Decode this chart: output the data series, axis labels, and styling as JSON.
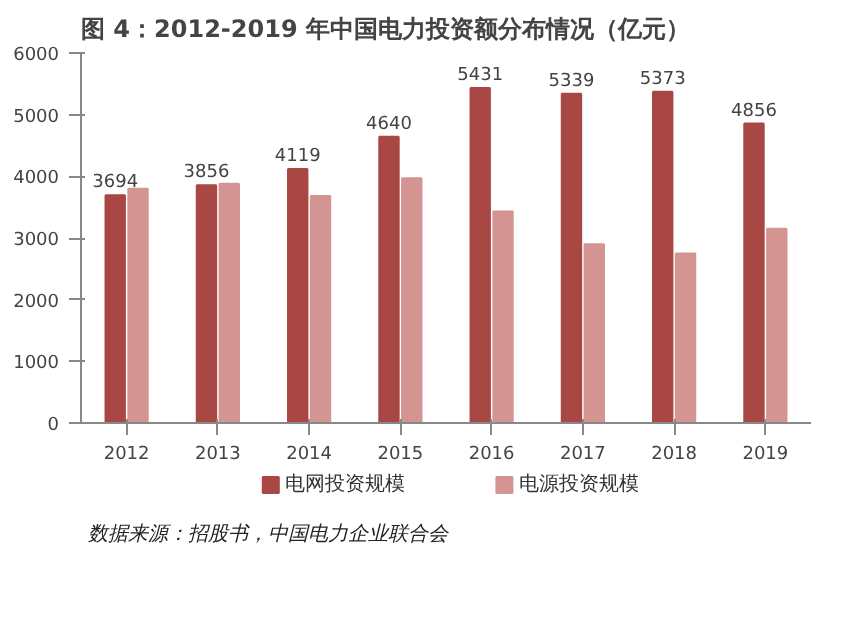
{
  "chart_data": {
    "type": "bar",
    "title": "图 4：2012-2019 年中国电力投资额分布情况（亿元）",
    "categories": [
      "2012",
      "2013",
      "2014",
      "2015",
      "2016",
      "2017",
      "2018",
      "2019"
    ],
    "series": [
      {
        "name": "电网投资规模",
        "color": "#a94744",
        "values": [
          3694,
          3856,
          4119,
          4640,
          5431,
          5339,
          5373,
          4856
        ],
        "value_labels": [
          "3694",
          "3856",
          "4119",
          "4640",
          "5431",
          "5339",
          "5373",
          "4856"
        ]
      },
      {
        "name": "电源投资规模",
        "color": "#d49492",
        "values": [
          3800,
          3880,
          3680,
          3970,
          3430,
          2900,
          2750,
          3150
        ]
      }
    ],
    "ylim": [
      0,
      6000
    ],
    "yticks": [
      0,
      1000,
      2000,
      3000,
      4000,
      5000,
      6000
    ],
    "grid": false,
    "legend": "bottom",
    "annotations": [
      "数据来源：招股书，中国电力企业联合会"
    ]
  }
}
